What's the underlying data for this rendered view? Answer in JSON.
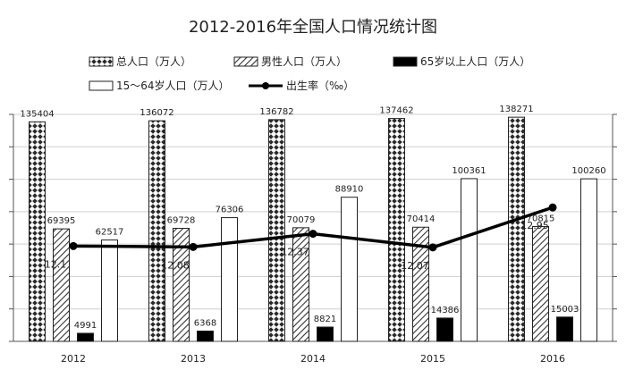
{
  "chart_data": {
    "type": "bar",
    "title": "2012-2016年全国人口情况统计图",
    "categories": [
      "2012",
      "2013",
      "2014",
      "2015",
      "2016"
    ],
    "series": [
      {
        "name": "总人口（万人）",
        "type": "bar",
        "pattern": "diamond",
        "color": "#000000",
        "values": [
          135404,
          136072,
          136782,
          137462,
          138271
        ]
      },
      {
        "name": "男性人口（万人）",
        "type": "bar",
        "pattern": "diagonal",
        "color": "#000000",
        "values": [
          69395,
          69728,
          70079,
          70414,
          70815
        ]
      },
      {
        "name": "65岁以上人口（万人）",
        "type": "bar",
        "pattern": "solid",
        "color": "#000000",
        "values": [
          4991,
          6368,
          8821,
          14386,
          15003
        ]
      },
      {
        "name": "15～64岁人口（万人）",
        "type": "bar",
        "pattern": "hollow",
        "color": "#000000",
        "values": [
          62517,
          76306,
          88910,
          100361,
          100260
        ]
      },
      {
        "name": "出生率（‰）",
        "type": "line",
        "color": "#000000",
        "values": [
          12.1,
          12.08,
          12.37,
          12.07,
          12.95
        ]
      }
    ],
    "grid": true,
    "legend_position": "top"
  }
}
